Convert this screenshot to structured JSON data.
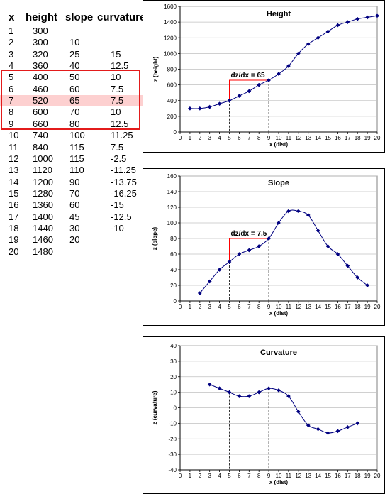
{
  "table": {
    "headers": {
      "x": "x",
      "height": "height",
      "slope": "slope",
      "curvature": "curvature"
    },
    "rows": [
      {
        "x": "1",
        "height": "300",
        "slope": "",
        "curvature": ""
      },
      {
        "x": "2",
        "height": "300",
        "slope": "10",
        "curvature": ""
      },
      {
        "x": "3",
        "height": "320",
        "slope": "25",
        "curvature": "15"
      },
      {
        "x": "4",
        "height": "360",
        "slope": "40",
        "curvature": "12.5"
      },
      {
        "x": "5",
        "height": "400",
        "slope": "50",
        "curvature": "10"
      },
      {
        "x": "6",
        "height": "460",
        "slope": "60",
        "curvature": "7.5"
      },
      {
        "x": "7",
        "height": "520",
        "slope": "65",
        "curvature": "7.5"
      },
      {
        "x": "8",
        "height": "600",
        "slope": "70",
        "curvature": "10"
      },
      {
        "x": "9",
        "height": "660",
        "slope": "80",
        "curvature": "12.5"
      },
      {
        "x": "10",
        "height": "740",
        "slope": "100",
        "curvature": "11.25"
      },
      {
        "x": "11",
        "height": "840",
        "slope": "115",
        "curvature": "7.5"
      },
      {
        "x": "12",
        "height": "1000",
        "slope": "115",
        "curvature": "-2.5"
      },
      {
        "x": "13",
        "height": "1120",
        "slope": "110",
        "curvature": "-11.25"
      },
      {
        "x": "14",
        "height": "1200",
        "slope": "90",
        "curvature": "-13.75"
      },
      {
        "x": "15",
        "height": "1280",
        "slope": "70",
        "curvature": "-16.25"
      },
      {
        "x": "16",
        "height": "1360",
        "slope": "60",
        "curvature": "-15"
      },
      {
        "x": "17",
        "height": "1400",
        "slope": "45",
        "curvature": "-12.5"
      },
      {
        "x": "18",
        "height": "1440",
        "slope": "30",
        "curvature": "-10"
      },
      {
        "x": "19",
        "height": "1460",
        "slope": "20",
        "curvature": ""
      },
      {
        "x": "20",
        "height": "1480",
        "slope": "",
        "curvature": ""
      }
    ],
    "highlight_rows": [
      5,
      6,
      7,
      8,
      9
    ],
    "emphasized_row": 7,
    "highlight_border_color": "#e31b1b",
    "emphasized_row_color": "#fdd0d0"
  },
  "colors": {
    "series": "#000080",
    "annotation": "#ff0000",
    "gridline": "#c0c0c0",
    "axis": "#808080"
  },
  "chart_data": [
    {
      "id": "height",
      "type": "line",
      "title": "Height",
      "xlabel": "x (dist)",
      "ylabel": "z (height)",
      "xlim": [
        0,
        20
      ],
      "ylim": [
        0,
        1600
      ],
      "xticks": [
        0,
        1,
        2,
        3,
        4,
        5,
        6,
        7,
        8,
        9,
        10,
        11,
        12,
        13,
        14,
        15,
        16,
        17,
        18,
        19,
        20
      ],
      "yticks": [
        0,
        200,
        400,
        600,
        800,
        1000,
        1200,
        1400,
        1600
      ],
      "grid": "horizontal",
      "x": [
        1,
        2,
        3,
        4,
        5,
        6,
        7,
        8,
        9,
        10,
        11,
        12,
        13,
        14,
        15,
        16,
        17,
        18,
        19,
        20
      ],
      "y": [
        300,
        300,
        320,
        360,
        400,
        460,
        520,
        600,
        660,
        740,
        840,
        1000,
        1120,
        1200,
        1280,
        1360,
        1400,
        1440,
        1460,
        1480
      ],
      "annotation": {
        "label": "dz/dx = 65",
        "x_from": 5,
        "x_to": 9,
        "y_from": 400,
        "y_to": 660
      }
    },
    {
      "id": "slope",
      "type": "line",
      "title": "Slope",
      "xlabel": "x (dist)",
      "ylabel": "z (slope)",
      "xlim": [
        0,
        20
      ],
      "ylim": [
        0,
        160
      ],
      "xticks": [
        0,
        1,
        2,
        3,
        4,
        5,
        6,
        7,
        8,
        9,
        10,
        11,
        12,
        13,
        14,
        15,
        16,
        17,
        18,
        19,
        20
      ],
      "yticks": [
        0,
        20,
        40,
        60,
        80,
        100,
        120,
        140,
        160
      ],
      "grid": "horizontal",
      "x": [
        2,
        3,
        4,
        5,
        6,
        7,
        8,
        9,
        10,
        11,
        12,
        13,
        14,
        15,
        16,
        17,
        18,
        19
      ],
      "y": [
        10,
        25,
        40,
        50,
        60,
        65,
        70,
        80,
        100,
        115,
        115,
        110,
        90,
        70,
        60,
        45,
        30,
        20
      ],
      "annotation": {
        "label": "dz/dx = 7.5",
        "x_from": 5,
        "x_to": 9,
        "y_from": 50,
        "y_to": 80
      }
    },
    {
      "id": "curvature",
      "type": "line",
      "title": "Curvature",
      "xlabel": "x (dist)",
      "ylabel": "z (curvature)",
      "xlim": [
        0,
        20
      ],
      "ylim": [
        -40,
        40
      ],
      "xticks": [
        0,
        1,
        2,
        3,
        4,
        5,
        6,
        7,
        8,
        9,
        10,
        11,
        12,
        13,
        14,
        15,
        16,
        17,
        18,
        19,
        20
      ],
      "yticks": [
        -40,
        -30,
        -20,
        -10,
        0,
        10,
        20,
        30,
        40
      ],
      "grid": "horizontal",
      "x": [
        3,
        4,
        5,
        6,
        7,
        8,
        9,
        10,
        11,
        12,
        13,
        14,
        15,
        16,
        17,
        18
      ],
      "y": [
        15,
        12.5,
        10,
        7.5,
        7.5,
        10,
        12.5,
        11.25,
        7.5,
        -2.5,
        -11.25,
        -13.75,
        -16.25,
        -15,
        -12.5,
        -10
      ],
      "annotation": {
        "label": "",
        "x_from": 5,
        "x_to": 9,
        "y_from": 10,
        "y_to": 12.5
      }
    }
  ]
}
